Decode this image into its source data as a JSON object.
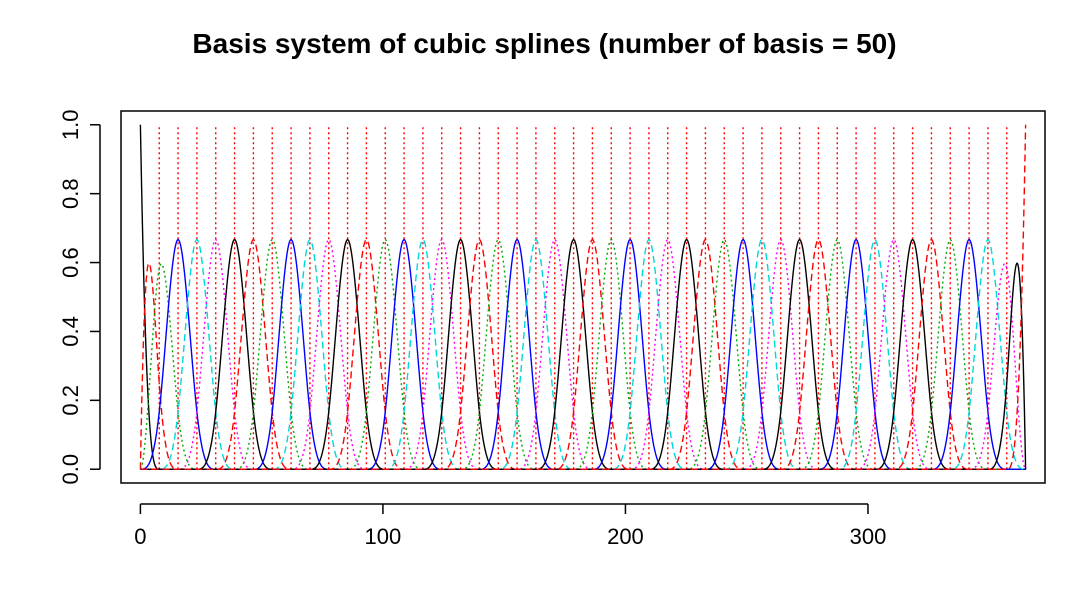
{
  "chart_data": {
    "type": "line",
    "title": "Basis system of cubic splines (number of basis = 50)",
    "xlabel": "",
    "ylabel": "",
    "xlim": [
      -8,
      373
    ],
    "ylim": [
      -0.04,
      1.04
    ],
    "x_ticks": [
      0,
      100,
      200,
      300
    ],
    "x_tick_labels": [
      "0",
      "100",
      "200",
      "300"
    ],
    "y_ticks": [
      0.0,
      0.2,
      0.4,
      0.6,
      0.8,
      1.0
    ],
    "y_tick_labels": [
      "0.0",
      "0.2",
      "0.4",
      "0.6",
      "0.8",
      "1.0"
    ],
    "basis": {
      "kind": "cubic B-spline",
      "nbasis": 50,
      "order": 4,
      "rangeval": [
        0,
        365
      ]
    },
    "interior_knot_lines": {
      "count": 46,
      "style": "dotted",
      "color": "#ff0000"
    },
    "series_colors": [
      "#000000",
      "#ff0000",
      "#00aa00",
      "#0000ff",
      "#00d8d8",
      "#ff00ff"
    ],
    "series_dash": [
      "solid",
      "dashed",
      "dotted",
      "solid",
      "dashed",
      "dotted"
    ],
    "grid": false,
    "legend": "none"
  }
}
